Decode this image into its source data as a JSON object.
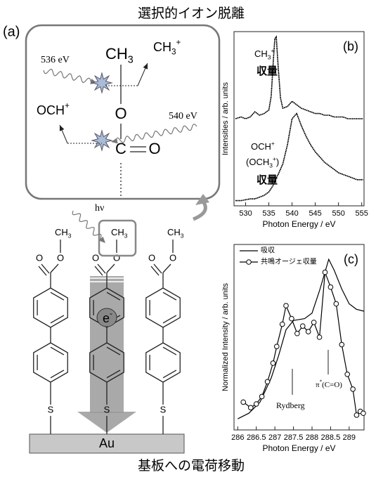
{
  "title": "選択的イオン脱離",
  "caption": "基板への電荷移動",
  "panel_a": {
    "label": "(a)",
    "methyl": [
      "CH",
      "3"
    ],
    "methyl_ion": [
      "CH",
      "3",
      "+"
    ],
    "oxygen": "O",
    "formyl_ion": [
      "OCH",
      "+"
    ],
    "carbonyl": [
      "C",
      "O"
    ],
    "energy_1": "536 eV",
    "energy_2": "540 eV",
    "photon": "hν",
    "electron": [
      "e",
      "-"
    ],
    "sulfur": "S",
    "substrate": "Au"
  },
  "chart_data": [
    {
      "type": "line",
      "panel_label": "(b)",
      "xlabel": "Photon Energy / eV",
      "ylabel": "Intensities / arb. units",
      "xlim": [
        527.5,
        555.5
      ],
      "xticks": [
        530,
        535,
        540,
        545,
        550,
        555
      ],
      "ylim": [
        0,
        10
      ],
      "x": [
        527.8,
        529,
        530,
        531,
        532,
        533,
        534,
        535,
        535.5,
        536,
        536.3,
        536.6,
        537,
        537.5,
        538,
        539,
        540,
        541,
        542,
        543,
        544,
        545,
        546,
        547,
        548,
        549,
        550,
        551,
        552,
        553,
        554,
        555.3
      ],
      "series": [
        {
          "label": {
            "ion": [
              "CH",
              "3",
              "+"
            ],
            "unit": "収量"
          },
          "color": "#000000",
          "values": [
            5.0,
            5.1,
            5.0,
            5.1,
            5.4,
            5.2,
            5.3,
            5.5,
            6.3,
            8.5,
            9.6,
            9.7,
            8.0,
            6.2,
            5.6,
            5.7,
            6.0,
            5.8,
            5.6,
            5.5,
            5.4,
            5.3,
            5.3,
            5.2,
            5.2,
            5.1,
            5.1,
            5.1,
            5.0,
            5.0,
            5.0,
            5.0
          ]
        },
        {
          "label": {
            "ion": [
              "OCH",
              "+"
            ],
            "ion_alt": [
              "(OCH",
              "3",
              "+",
              ")"
            ],
            "unit": "収量"
          },
          "color": "#000000",
          "values": [
            0.3,
            0.3,
            0.35,
            0.4,
            0.4,
            0.5,
            0.6,
            0.8,
            1.0,
            1.2,
            1.4,
            1.6,
            1.8,
            2.1,
            2.4,
            3.5,
            5.0,
            5.3,
            4.6,
            4.0,
            3.5,
            3.1,
            2.8,
            2.5,
            2.3,
            2.1,
            1.9,
            1.8,
            1.7,
            1.6,
            1.5,
            1.5
          ]
        }
      ]
    },
    {
      "type": "line",
      "panel_label": "(c)",
      "xlabel": "Photon Energy / eV",
      "ylabel": "Normalized Intensity / arb. units",
      "xlim": [
        285.9,
        289.4
      ],
      "xticks": [
        286,
        286.5,
        287,
        287.5,
        288,
        288.5,
        289
      ],
      "ylim": [
        0,
        10
      ],
      "legend": "upper left",
      "annotations": [
        "Rydberg",
        [
          "π",
          "*",
          "(C=O)"
        ]
      ],
      "series": [
        {
          "name": "吸収",
          "color": "#000000",
          "marker": "none",
          "x": [
            286.0,
            286.3,
            286.6,
            286.9,
            287.1,
            287.3,
            287.5,
            287.8,
            288.0,
            288.2,
            288.45,
            288.6,
            288.8,
            289.0,
            289.2,
            289.4
          ],
          "values": [
            0.6,
            0.9,
            1.5,
            2.8,
            4.0,
            5.4,
            5.9,
            6.0,
            6.3,
            7.5,
            9.2,
            8.6,
            7.6,
            6.8,
            6.5,
            6.4
          ]
        },
        {
          "name": "共鳴オージェ収量",
          "color": "#000000",
          "marker": "circle",
          "x": [
            286.15,
            286.35,
            286.5,
            286.65,
            286.8,
            286.95,
            287.05,
            287.2,
            287.3,
            287.45,
            287.6,
            287.75,
            287.9,
            288.05,
            288.2,
            288.35,
            288.5,
            288.65,
            288.8,
            288.95,
            289.1,
            289.2,
            289.3,
            289.38
          ],
          "values": [
            1.5,
            1.2,
            1.4,
            1.8,
            2.6,
            3.6,
            4.5,
            5.7,
            6.7,
            6.0,
            5.2,
            5.6,
            5.3,
            5.8,
            5.0,
            8.5,
            7.7,
            6.8,
            4.6,
            3.0,
            2.2,
            0.8,
            1.0,
            0.9
          ]
        }
      ]
    }
  ]
}
